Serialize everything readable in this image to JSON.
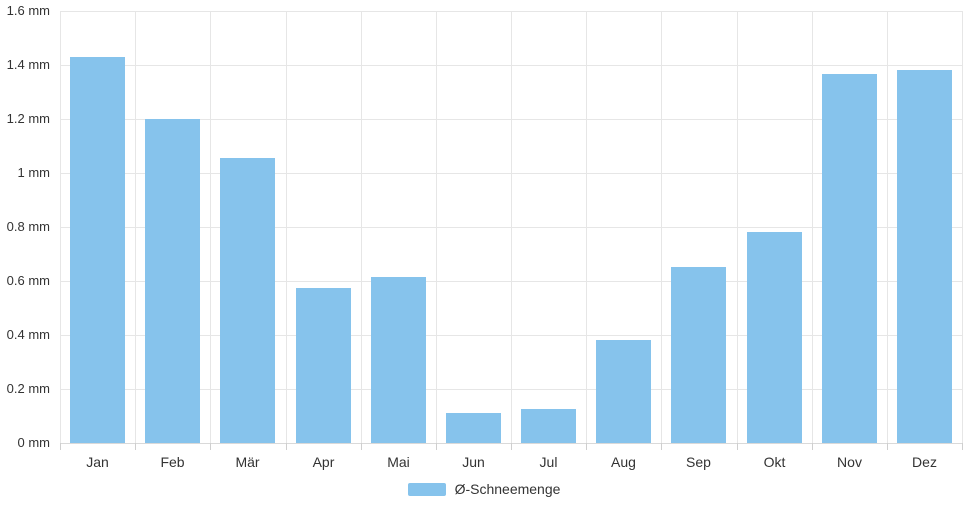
{
  "chart_data": {
    "type": "bar",
    "categories": [
      "Jan",
      "Feb",
      "Mär",
      "Apr",
      "Mai",
      "Jun",
      "Jul",
      "Aug",
      "Sep",
      "Okt",
      "Nov",
      "Dez"
    ],
    "values": [
      1.43,
      1.2,
      1.055,
      0.575,
      0.615,
      0.11,
      0.125,
      0.38,
      0.65,
      0.78,
      1.365,
      1.38
    ],
    "series_name": "Ø-Schneemenge",
    "unit": "mm",
    "title": "",
    "xlabel": "",
    "ylabel": "",
    "ylim": [
      0,
      1.6
    ],
    "y_tick_step": 0.2,
    "y_tick_labels": [
      "0 mm",
      "0.2 mm",
      "0.4 mm",
      "0.6 mm",
      "0.8 mm",
      "1 mm",
      "1.2 mm",
      "1.4 mm",
      "1.6 mm"
    ],
    "grid": true,
    "legend_position": "bottom-center",
    "colors": {
      "bar": "#86C3EC",
      "grid": "#e6e6e6",
      "axis": "#d9d9d9",
      "tick": "#cfcfcf",
      "text": "#333333",
      "background": "#ffffff"
    }
  },
  "legend": {
    "label": "Ø-Schneemenge"
  }
}
